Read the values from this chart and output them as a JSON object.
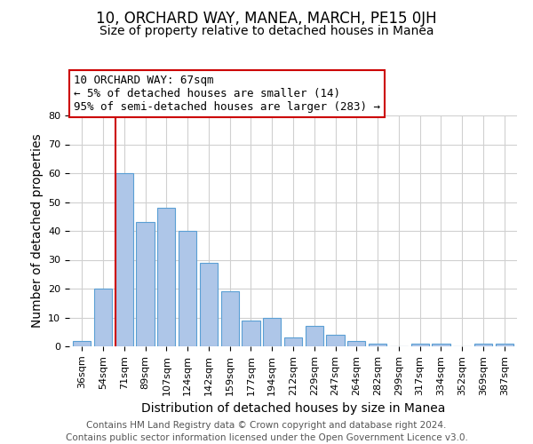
{
  "title": "10, ORCHARD WAY, MANEA, MARCH, PE15 0JH",
  "subtitle": "Size of property relative to detached houses in Manea",
  "xlabel": "Distribution of detached houses by size in Manea",
  "ylabel": "Number of detached properties",
  "categories": [
    "36sqm",
    "54sqm",
    "71sqm",
    "89sqm",
    "107sqm",
    "124sqm",
    "142sqm",
    "159sqm",
    "177sqm",
    "194sqm",
    "212sqm",
    "229sqm",
    "247sqm",
    "264sqm",
    "282sqm",
    "299sqm",
    "317sqm",
    "334sqm",
    "352sqm",
    "369sqm",
    "387sqm"
  ],
  "values": [
    2,
    20,
    60,
    43,
    48,
    40,
    29,
    19,
    9,
    10,
    3,
    7,
    4,
    2,
    1,
    0,
    1,
    1,
    0,
    1,
    1
  ],
  "bar_color": "#aec6e8",
  "bar_edge_color": "#5a9fd4",
  "redline_index": 2,
  "redline_color": "#cc0000",
  "annotation_line1": "10 ORCHARD WAY: 67sqm",
  "annotation_line2": "← 5% of detached houses are smaller (14)",
  "annotation_line3": "95% of semi-detached houses are larger (283) →",
  "annotation_box_color": "#ffffff",
  "annotation_box_edge": "#cc0000",
  "ylim": [
    0,
    80
  ],
  "yticks": [
    0,
    10,
    20,
    30,
    40,
    50,
    60,
    70,
    80
  ],
  "footnote": "Contains HM Land Registry data © Crown copyright and database right 2024.\nContains public sector information licensed under the Open Government Licence v3.0.",
  "background_color": "#ffffff",
  "grid_color": "#d0d0d0",
  "title_fontsize": 12,
  "subtitle_fontsize": 10,
  "axis_label_fontsize": 10,
  "tick_fontsize": 8,
  "annotation_fontsize": 9,
  "footnote_fontsize": 7.5
}
